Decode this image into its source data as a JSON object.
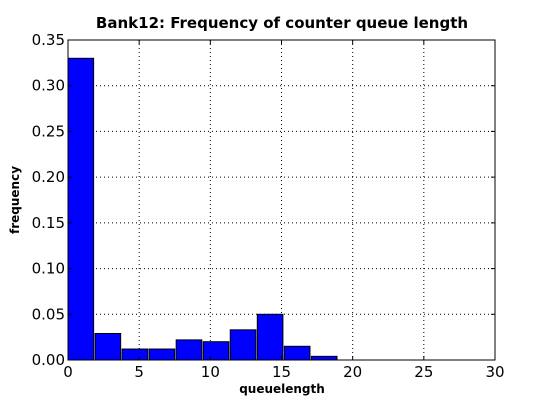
{
  "chart_data": {
    "type": "bar",
    "title": "Bank12: Frequency of counter queue length",
    "xlabel": "queuelength",
    "ylabel": "frequency",
    "xlim": [
      0,
      30
    ],
    "ylim": [
      0,
      0.35
    ],
    "xticks": [
      0,
      5,
      10,
      15,
      20,
      25,
      30
    ],
    "xtick_labels": [
      "0",
      "5",
      "10",
      "15",
      "20",
      "25",
      "30"
    ],
    "yticks": [
      0.0,
      0.05,
      0.1,
      0.15,
      0.2,
      0.25,
      0.3,
      0.35
    ],
    "ytick_labels": [
      "0.00",
      "0.05",
      "0.10",
      "0.15",
      "0.20",
      "0.25",
      "0.30",
      "0.35"
    ],
    "grid": true,
    "bar_color": "#0000ff",
    "bars": [
      {
        "x_start": 0.0,
        "x_end": 1.8,
        "value": 0.33
      },
      {
        "x_start": 1.9,
        "x_end": 3.7,
        "value": 0.029
      },
      {
        "x_start": 3.8,
        "x_end": 5.6,
        "value": 0.012
      },
      {
        "x_start": 5.7,
        "x_end": 7.5,
        "value": 0.012
      },
      {
        "x_start": 7.6,
        "x_end": 9.4,
        "value": 0.022
      },
      {
        "x_start": 9.5,
        "x_end": 11.3,
        "value": 0.02
      },
      {
        "x_start": 11.4,
        "x_end": 13.2,
        "value": 0.033
      },
      {
        "x_start": 13.3,
        "x_end": 15.1,
        "value": 0.05
      },
      {
        "x_start": 15.2,
        "x_end": 17.0,
        "value": 0.015
      },
      {
        "x_start": 17.1,
        "x_end": 18.9,
        "value": 0.004
      }
    ]
  }
}
